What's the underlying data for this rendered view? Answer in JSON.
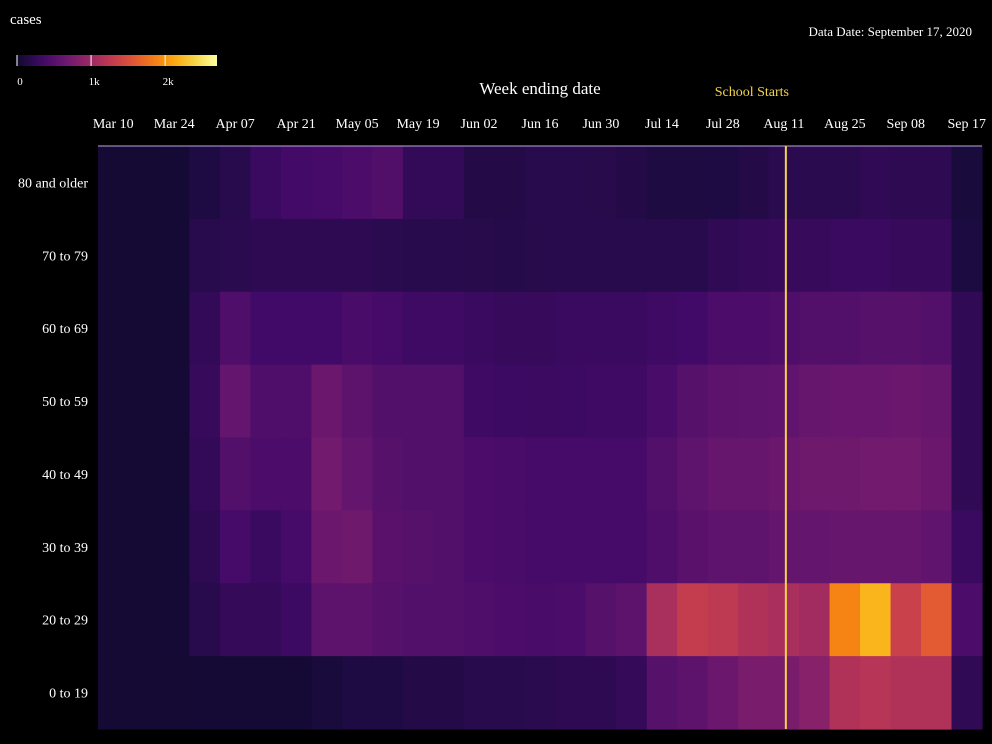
{
  "data_date": "Data Date: September 17, 2020",
  "colors": {
    "background": "#000000",
    "annotation": "#f2d54a",
    "axis_line": "#b8a6d8"
  },
  "chart_data": {
    "type": "heatmap",
    "title": "",
    "xlabel": "Week ending date",
    "ylabel": "",
    "x": [
      "Mar 10",
      "Mar 17",
      "Mar 24",
      "Mar 31",
      "Apr 07",
      "Apr 14",
      "Apr 21",
      "Apr 28",
      "May 05",
      "May 12",
      "May 19",
      "May 26",
      "Jun 02",
      "Jun 09",
      "Jun 16",
      "Jun 23",
      "Jun 30",
      "Jul 07",
      "Jul 14",
      "Jul 21",
      "Jul 28",
      "Aug 04",
      "Aug 11",
      "Aug 18",
      "Aug 25",
      "Sep 01",
      "Sep 08",
      "Sep 15",
      "Sep 17"
    ],
    "x_tick_labels": [
      "Mar 10",
      "Mar 24",
      "Apr 07",
      "Apr 21",
      "May 05",
      "May 19",
      "Jun 02",
      "Jun 16",
      "Jun 30",
      "Jul 14",
      "Jul 28",
      "Aug 11",
      "Aug 25",
      "Sep 08",
      "Sep 17"
    ],
    "y": [
      "80 and older",
      "70 to 79",
      "60 to 69",
      "50 to 59",
      "40 to 49",
      "30 to 39",
      "20 to 29",
      "0 to 19"
    ],
    "values": [
      [
        30,
        30,
        40,
        120,
        180,
        300,
        360,
        380,
        420,
        460,
        250,
        250,
        150,
        150,
        180,
        180,
        170,
        150,
        110,
        110,
        120,
        150,
        200,
        200,
        200,
        230,
        220,
        210,
        80
      ],
      [
        30,
        30,
        40,
        180,
        200,
        220,
        220,
        220,
        220,
        200,
        180,
        180,
        170,
        160,
        170,
        180,
        180,
        180,
        180,
        180,
        230,
        260,
        280,
        280,
        300,
        300,
        280,
        280,
        100
      ],
      [
        30,
        30,
        40,
        250,
        450,
        350,
        350,
        350,
        400,
        380,
        330,
        330,
        300,
        280,
        280,
        300,
        300,
        300,
        330,
        350,
        420,
        420,
        440,
        480,
        480,
        500,
        500,
        480,
        240
      ],
      [
        30,
        30,
        40,
        280,
        600,
        450,
        450,
        650,
        550,
        480,
        480,
        480,
        330,
        320,
        310,
        320,
        330,
        330,
        400,
        500,
        550,
        560,
        580,
        620,
        640,
        640,
        650,
        620,
        240
      ],
      [
        30,
        30,
        40,
        250,
        480,
        420,
        420,
        700,
        600,
        500,
        480,
        480,
        420,
        400,
        380,
        380,
        380,
        380,
        480,
        560,
        620,
        620,
        650,
        680,
        680,
        700,
        700,
        650,
        240
      ],
      [
        30,
        30,
        40,
        220,
        380,
        300,
        380,
        650,
        680,
        520,
        500,
        480,
        420,
        400,
        380,
        380,
        380,
        380,
        450,
        520,
        560,
        560,
        600,
        600,
        620,
        620,
        620,
        580,
        300
      ],
      [
        30,
        30,
        40,
        180,
        260,
        260,
        320,
        550,
        550,
        500,
        480,
        480,
        450,
        420,
        400,
        420,
        500,
        550,
        1100,
        1300,
        1250,
        1150,
        1100,
        1050,
        1900,
        2200,
        1350,
        1600,
        420
      ],
      [
        30,
        30,
        30,
        40,
        40,
        40,
        40,
        80,
        120,
        120,
        150,
        150,
        180,
        180,
        200,
        220,
        220,
        260,
        500,
        550,
        650,
        750,
        750,
        850,
        1150,
        1200,
        1150,
        1150,
        240
      ]
    ],
    "colorscale": {
      "name": "inferno",
      "domain": [
        0,
        2700
      ]
    },
    "colorbar": {
      "title": "cases",
      "tick_labels": [
        "0",
        "1k",
        "2k"
      ],
      "ticks": [
        0,
        1000,
        2000
      ]
    },
    "annotations": [
      {
        "text": "School Starts",
        "x": "Aug 11"
      }
    ]
  }
}
